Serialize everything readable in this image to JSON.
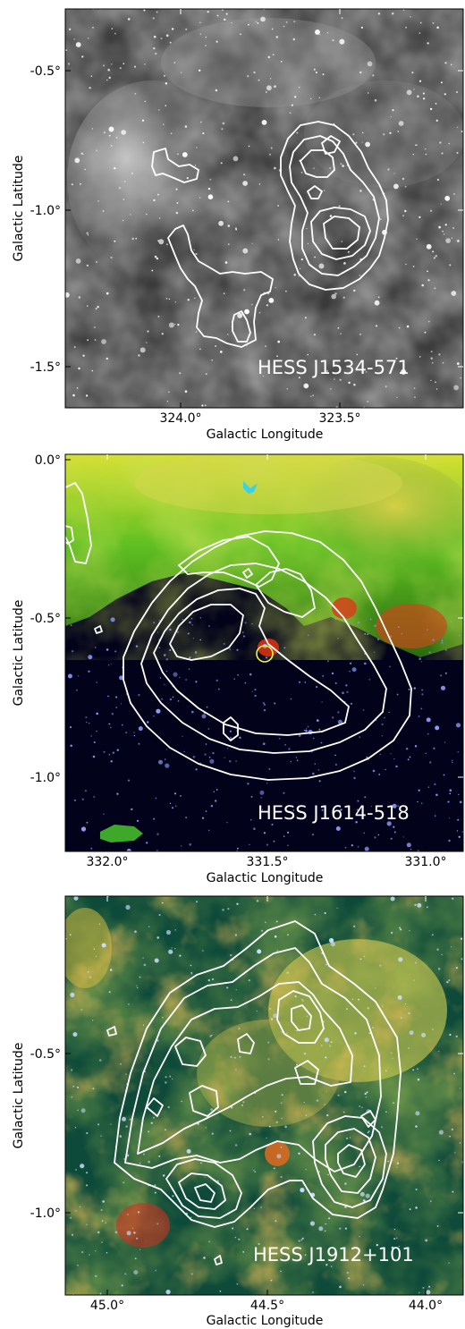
{
  "panels": [
    {
      "source": "HESS J1534-571",
      "xticks": [
        "324.0°",
        "323.5°"
      ],
      "yticks": [
        "-0.5°",
        "-1.0°",
        "-1.5°"
      ],
      "xlabel": "Galactic Longitude",
      "ylabel": "Galactic Latitude",
      "colormap": "grayscale infrared"
    },
    {
      "source": "HESS J1614-518",
      "xticks": [
        "332.0°",
        "331.5°",
        "331.0°"
      ],
      "yticks": [
        "0.0°",
        "-0.5°",
        "-1.0°"
      ],
      "xlabel": "Galactic Longitude",
      "ylabel": "Galactic Latitude",
      "colormap": "RGB infrared"
    },
    {
      "source": "HESS J1912+101",
      "xticks": [
        "45.0°",
        "44.5°",
        "44.0°"
      ],
      "yticks": [
        "-0.5°",
        "-1.0°"
      ],
      "xlabel": "Galactic Longitude",
      "ylabel": "Galactic Latitude",
      "colormap": "RGB infrared"
    }
  ]
}
